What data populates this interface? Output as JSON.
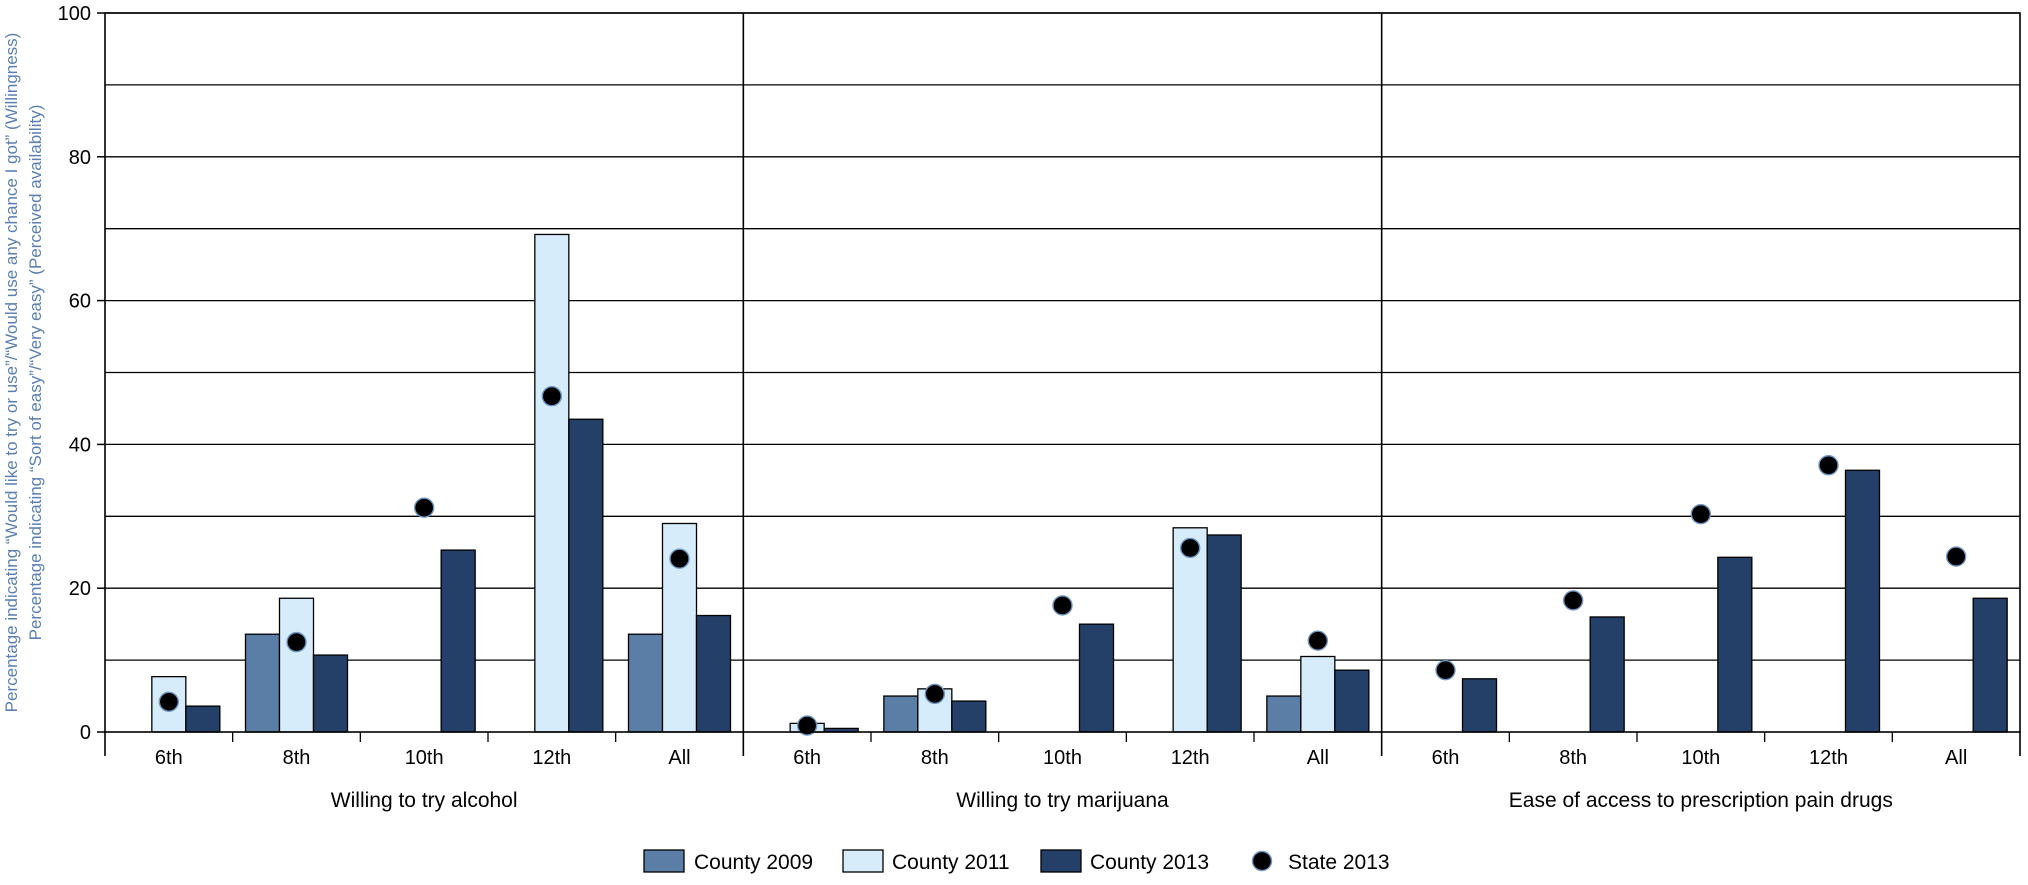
{
  "chart_data": {
    "type": "bar",
    "title": "",
    "ylabel_lines": [
      "Percentage indicating “Would like to try or use”/“Would use any chance I got” (Willingness)",
      "Percentage indicating “Sort of easy”/“Very easy” (Perceived availability)"
    ],
    "ylim": [
      0,
      100
    ],
    "yticks": [
      0,
      20,
      40,
      60,
      80,
      100
    ],
    "grid": true,
    "legend_position": "bottom-center",
    "categories": [
      "6th",
      "8th",
      "10th",
      "12th",
      "All"
    ],
    "groups": [
      {
        "label": "Willing to try alcohol",
        "series": [
          {
            "name": "County 2009",
            "values": [
              null,
              13.6,
              null,
              null,
              13.6
            ]
          },
          {
            "name": "County 2011",
            "values": [
              7.7,
              18.6,
              null,
              69.2,
              29.0
            ]
          },
          {
            "name": "County 2013",
            "values": [
              3.6,
              10.7,
              25.3,
              43.5,
              16.2
            ]
          },
          {
            "name": "State 2013",
            "values": [
              4.2,
              12.5,
              31.2,
              46.7,
              24.1
            ]
          }
        ]
      },
      {
        "label": "Willing to try marijuana",
        "series": [
          {
            "name": "County 2009",
            "values": [
              null,
              5.0,
              null,
              null,
              5.0
            ]
          },
          {
            "name": "County 2011",
            "values": [
              1.2,
              6.0,
              null,
              28.4,
              10.5
            ]
          },
          {
            "name": "County 2013",
            "values": [
              0.5,
              4.3,
              15.0,
              27.4,
              8.6
            ]
          },
          {
            "name": "State 2013",
            "values": [
              0.9,
              5.3,
              17.6,
              25.6,
              12.7
            ]
          }
        ]
      },
      {
        "label": "Ease of access to prescription pain drugs",
        "series": [
          {
            "name": "County 2009",
            "values": [
              null,
              null,
              null,
              null,
              null
            ]
          },
          {
            "name": "County 2011",
            "values": [
              null,
              null,
              null,
              null,
              null
            ]
          },
          {
            "name": "County 2013",
            "values": [
              7.4,
              16.0,
              24.3,
              36.4,
              18.6
            ]
          },
          {
            "name": "State 2013",
            "values": [
              8.6,
              18.3,
              30.3,
              37.1,
              24.4
            ]
          }
        ]
      }
    ],
    "legend": [
      {
        "name": "County 2009",
        "kind": "bar",
        "color": "#5b7ea6"
      },
      {
        "name": "County 2011",
        "kind": "bar",
        "color": "#d7ecfb"
      },
      {
        "name": "County 2013",
        "kind": "bar",
        "color": "#243f68"
      },
      {
        "name": "State 2013",
        "kind": "dot",
        "color": "#000000"
      }
    ]
  }
}
